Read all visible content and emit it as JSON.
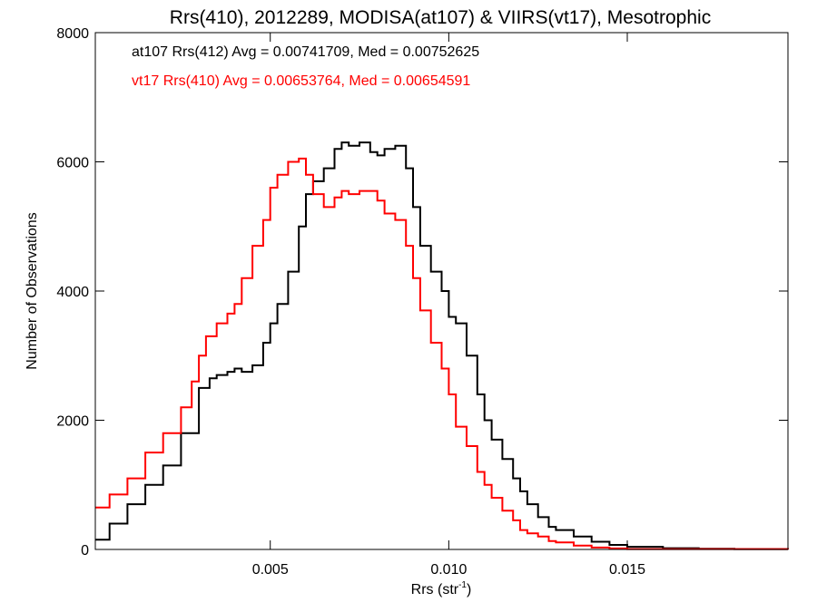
{
  "chart_data": {
    "type": "line",
    "step": true,
    "title": "Rrs(410), 2012289, MODISA(at107) & VIIRS(vt17), Mesotrophic",
    "xlabel": "Rrs (str",
    "xlabel_sup": "-1",
    "xlabel_end": ")",
    "ylabel": "Number of Observations",
    "xlim": [
      0.0001,
      0.0195
    ],
    "ylim": [
      0,
      8000
    ],
    "x_ticks": [
      0.005,
      0.01,
      0.015
    ],
    "x_tick_labels": [
      "0.005",
      "0.010",
      "0.015"
    ],
    "y_ticks": [
      0,
      2000,
      4000,
      6000,
      8000
    ],
    "y_tick_labels": [
      "0",
      "2000",
      "4000",
      "6000",
      "8000"
    ],
    "grid": false,
    "legend_position": "top-left",
    "series": [
      {
        "name": "at107 Rrs(412)",
        "label_text": "at107 Rrs(412) Avg = 0.00741709, Med = 0.00752625",
        "color": "#000000",
        "points": [
          [
            0.0001,
            150
          ],
          [
            0.0005,
            400
          ],
          [
            0.001,
            700
          ],
          [
            0.0015,
            1000
          ],
          [
            0.002,
            1300
          ],
          [
            0.0025,
            1800
          ],
          [
            0.003,
            2500
          ],
          [
            0.0033,
            2650
          ],
          [
            0.0035,
            2700
          ],
          [
            0.0038,
            2750
          ],
          [
            0.004,
            2800
          ],
          [
            0.0042,
            2750
          ],
          [
            0.0045,
            2850
          ],
          [
            0.0048,
            3200
          ],
          [
            0.005,
            3500
          ],
          [
            0.0052,
            3800
          ],
          [
            0.0055,
            4300
          ],
          [
            0.0058,
            5000
          ],
          [
            0.006,
            5500
          ],
          [
            0.0062,
            5700
          ],
          [
            0.0065,
            5900
          ],
          [
            0.0068,
            6200
          ],
          [
            0.007,
            6300
          ],
          [
            0.0072,
            6250
          ],
          [
            0.0075,
            6300
          ],
          [
            0.0078,
            6150
          ],
          [
            0.008,
            6100
          ],
          [
            0.0082,
            6200
          ],
          [
            0.0085,
            6250
          ],
          [
            0.0088,
            5900
          ],
          [
            0.009,
            5300
          ],
          [
            0.0092,
            4700
          ],
          [
            0.0095,
            4300
          ],
          [
            0.0098,
            4000
          ],
          [
            0.01,
            3600
          ],
          [
            0.0102,
            3500
          ],
          [
            0.0105,
            3000
          ],
          [
            0.0108,
            2400
          ],
          [
            0.011,
            2000
          ],
          [
            0.0112,
            1700
          ],
          [
            0.0115,
            1400
          ],
          [
            0.0118,
            1100
          ],
          [
            0.012,
            900
          ],
          [
            0.0122,
            700
          ],
          [
            0.0125,
            500
          ],
          [
            0.0128,
            350
          ],
          [
            0.013,
            300
          ],
          [
            0.0135,
            200
          ],
          [
            0.014,
            120
          ],
          [
            0.0145,
            70
          ],
          [
            0.015,
            40
          ],
          [
            0.016,
            20
          ],
          [
            0.017,
            10
          ],
          [
            0.018,
            5
          ],
          [
            0.0195,
            0
          ]
        ]
      },
      {
        "name": "vt17 Rrs(410)",
        "label_text": "vt17 Rrs(410) Avg = 0.00653764, Med = 0.00654591",
        "color": "#ff0000",
        "points": [
          [
            0.0001,
            650
          ],
          [
            0.0005,
            850
          ],
          [
            0.001,
            1100
          ],
          [
            0.0015,
            1500
          ],
          [
            0.002,
            1800
          ],
          [
            0.0025,
            2200
          ],
          [
            0.0028,
            2600
          ],
          [
            0.003,
            3000
          ],
          [
            0.0032,
            3300
          ],
          [
            0.0035,
            3500
          ],
          [
            0.0038,
            3650
          ],
          [
            0.004,
            3800
          ],
          [
            0.0042,
            4200
          ],
          [
            0.0045,
            4700
          ],
          [
            0.0048,
            5100
          ],
          [
            0.005,
            5600
          ],
          [
            0.0052,
            5800
          ],
          [
            0.0055,
            6000
          ],
          [
            0.0058,
            6050
          ],
          [
            0.006,
            5800
          ],
          [
            0.0062,
            5500
          ],
          [
            0.0065,
            5300
          ],
          [
            0.0068,
            5450
          ],
          [
            0.007,
            5550
          ],
          [
            0.0072,
            5500
          ],
          [
            0.0075,
            5550
          ],
          [
            0.0078,
            5550
          ],
          [
            0.008,
            5400
          ],
          [
            0.0082,
            5200
          ],
          [
            0.0085,
            5100
          ],
          [
            0.0088,
            4700
          ],
          [
            0.009,
            4200
          ],
          [
            0.0092,
            3700
          ],
          [
            0.0095,
            3200
          ],
          [
            0.0098,
            2800
          ],
          [
            0.01,
            2400
          ],
          [
            0.0102,
            1900
          ],
          [
            0.0105,
            1600
          ],
          [
            0.0108,
            1200
          ],
          [
            0.011,
            1000
          ],
          [
            0.0112,
            800
          ],
          [
            0.0115,
            600
          ],
          [
            0.0118,
            450
          ],
          [
            0.012,
            300
          ],
          [
            0.0122,
            250
          ],
          [
            0.0125,
            200
          ],
          [
            0.0128,
            130
          ],
          [
            0.013,
            110
          ],
          [
            0.0135,
            60
          ],
          [
            0.014,
            30
          ],
          [
            0.0145,
            15
          ],
          [
            0.015,
            5
          ],
          [
            0.0195,
            0
          ]
        ]
      }
    ]
  }
}
